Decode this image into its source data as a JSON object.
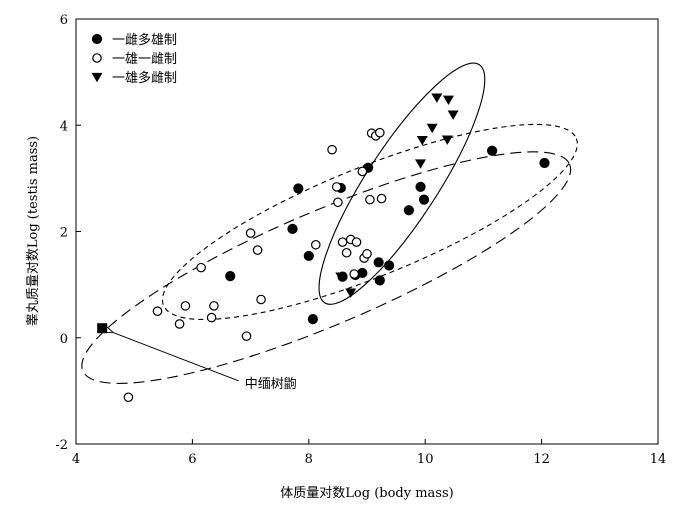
{
  "chart_data": {
    "type": "scatter",
    "xlabel": "体质量对数Log (body mass)",
    "ylabel": "睾丸质量对数Log (testis mass)",
    "xlim": [
      4,
      14
    ],
    "ylim": [
      -2,
      6
    ],
    "x_ticks": [
      4,
      6,
      8,
      10,
      12,
      14
    ],
    "y_ticks": [
      -2,
      0,
      2,
      4,
      6
    ],
    "grid": false,
    "legend_position": "top-left",
    "series": [
      {
        "name": "一雌多雄制",
        "marker": "filled-circle",
        "points": [
          [
            6.65,
            1.16
          ],
          [
            7.72,
            2.05
          ],
          [
            7.82,
            2.81
          ],
          [
            8.0,
            1.54
          ],
          [
            8.07,
            0.35
          ],
          [
            8.55,
            2.82
          ],
          [
            8.58,
            1.15
          ],
          [
            8.8,
            1.18
          ],
          [
            8.92,
            1.22
          ],
          [
            9.02,
            3.2
          ],
          [
            9.2,
            1.42
          ],
          [
            9.22,
            1.08
          ],
          [
            9.38,
            1.36
          ],
          [
            9.72,
            2.4
          ],
          [
            9.92,
            2.84
          ],
          [
            9.98,
            2.6
          ],
          [
            11.15,
            3.52
          ],
          [
            12.05,
            3.29
          ]
        ]
      },
      {
        "name": "一雄一雌制",
        "marker": "open-circle",
        "points": [
          [
            4.9,
            -1.12
          ],
          [
            5.4,
            0.5
          ],
          [
            5.78,
            0.26
          ],
          [
            5.88,
            0.6
          ],
          [
            6.15,
            1.32
          ],
          [
            6.33,
            0.38
          ],
          [
            6.37,
            0.6
          ],
          [
            6.93,
            0.03
          ],
          [
            7.0,
            1.97
          ],
          [
            7.12,
            1.65
          ],
          [
            7.18,
            0.72
          ],
          [
            8.12,
            1.75
          ],
          [
            8.4,
            3.54
          ],
          [
            8.48,
            2.84
          ],
          [
            8.5,
            2.55
          ],
          [
            8.58,
            1.8
          ],
          [
            8.65,
            1.6
          ],
          [
            8.72,
            1.85
          ],
          [
            8.78,
            1.2
          ],
          [
            8.82,
            1.8
          ],
          [
            8.92,
            3.13
          ],
          [
            8.95,
            1.5
          ],
          [
            9.0,
            1.58
          ],
          [
            9.05,
            2.6
          ],
          [
            9.08,
            3.85
          ],
          [
            9.15,
            3.8
          ],
          [
            9.25,
            2.62
          ],
          [
            9.22,
            3.86
          ]
        ]
      },
      {
        "name": "一雄多雌制",
        "marker": "filled-triangle-down",
        "points": [
          [
            8.55,
            1.15
          ],
          [
            8.72,
            0.85
          ],
          [
            9.92,
            3.28
          ],
          [
            9.95,
            3.72
          ],
          [
            10.12,
            3.95
          ],
          [
            10.2,
            4.52
          ],
          [
            10.38,
            3.73
          ],
          [
            10.4,
            4.48
          ],
          [
            10.48,
            4.2
          ]
        ]
      }
    ],
    "special_points": [
      {
        "label": "中缅树鼩",
        "marker": "filled-square",
        "x": 4.45,
        "y": 0.18
      }
    ],
    "ellipses": [
      {
        "series": "一雌多雄制",
        "style": "long-dash",
        "cx": 8.3,
        "cy": 1.32,
        "rx": 4.75,
        "ry": 1.02,
        "rotation_deg": 23
      },
      {
        "series": "一雄一雌制",
        "style": "short-dash",
        "cx": 9.05,
        "cy": 2.18,
        "rx": 4.0,
        "ry": 0.98,
        "rotation_deg": 22
      },
      {
        "series": "一雄多雌制",
        "style": "solid",
        "cx": 9.6,
        "cy": 2.9,
        "rx": 2.55,
        "ry": 0.64,
        "rotation_deg": 57
      }
    ],
    "annotations": [
      {
        "text": "中缅树鼩",
        "points_to": [
          4.45,
          0.18
        ],
        "text_at": [
          6.9,
          -0.85
        ]
      }
    ]
  }
}
